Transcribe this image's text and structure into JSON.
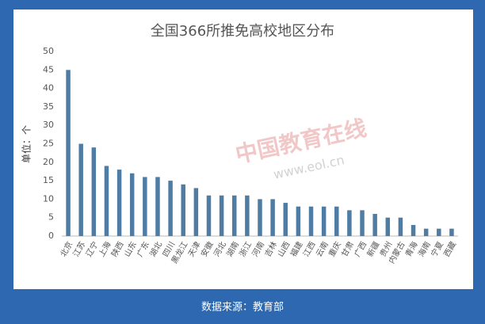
{
  "chart_data": {
    "type": "bar",
    "title": "全国366所推免高校地区分布",
    "y_label": "单位：个",
    "categories": [
      "北京",
      "江苏",
      "辽宁",
      "上海",
      "陕西",
      "山东",
      "广东",
      "湖北",
      "四川",
      "黑龙江",
      "天津",
      "安徽",
      "河北",
      "湖南",
      "浙江",
      "河南",
      "吉林",
      "山西",
      "福建",
      "江西",
      "云南",
      "重庆",
      "甘肃",
      "广西",
      "新疆",
      "贵州",
      "内蒙古",
      "青海",
      "海南",
      "宁夏",
      "西藏"
    ],
    "values": [
      45,
      25,
      24,
      19,
      18,
      17,
      16,
      16,
      15,
      14,
      13,
      11,
      11,
      11,
      11,
      10,
      10,
      9,
      8,
      8,
      8,
      8,
      7,
      7,
      6,
      5,
      5,
      3,
      2,
      2,
      2
    ],
    "color": "#4f7ca3",
    "ylim": [
      0,
      50
    ],
    "yticks": [
      0,
      5,
      10,
      15,
      20,
      25,
      30,
      35,
      40,
      45,
      50
    ],
    "grid": false
  },
  "watermark": {
    "name": "中国教育在线",
    "url": "www.eol.cn"
  },
  "footer": "数据来源：教育部"
}
